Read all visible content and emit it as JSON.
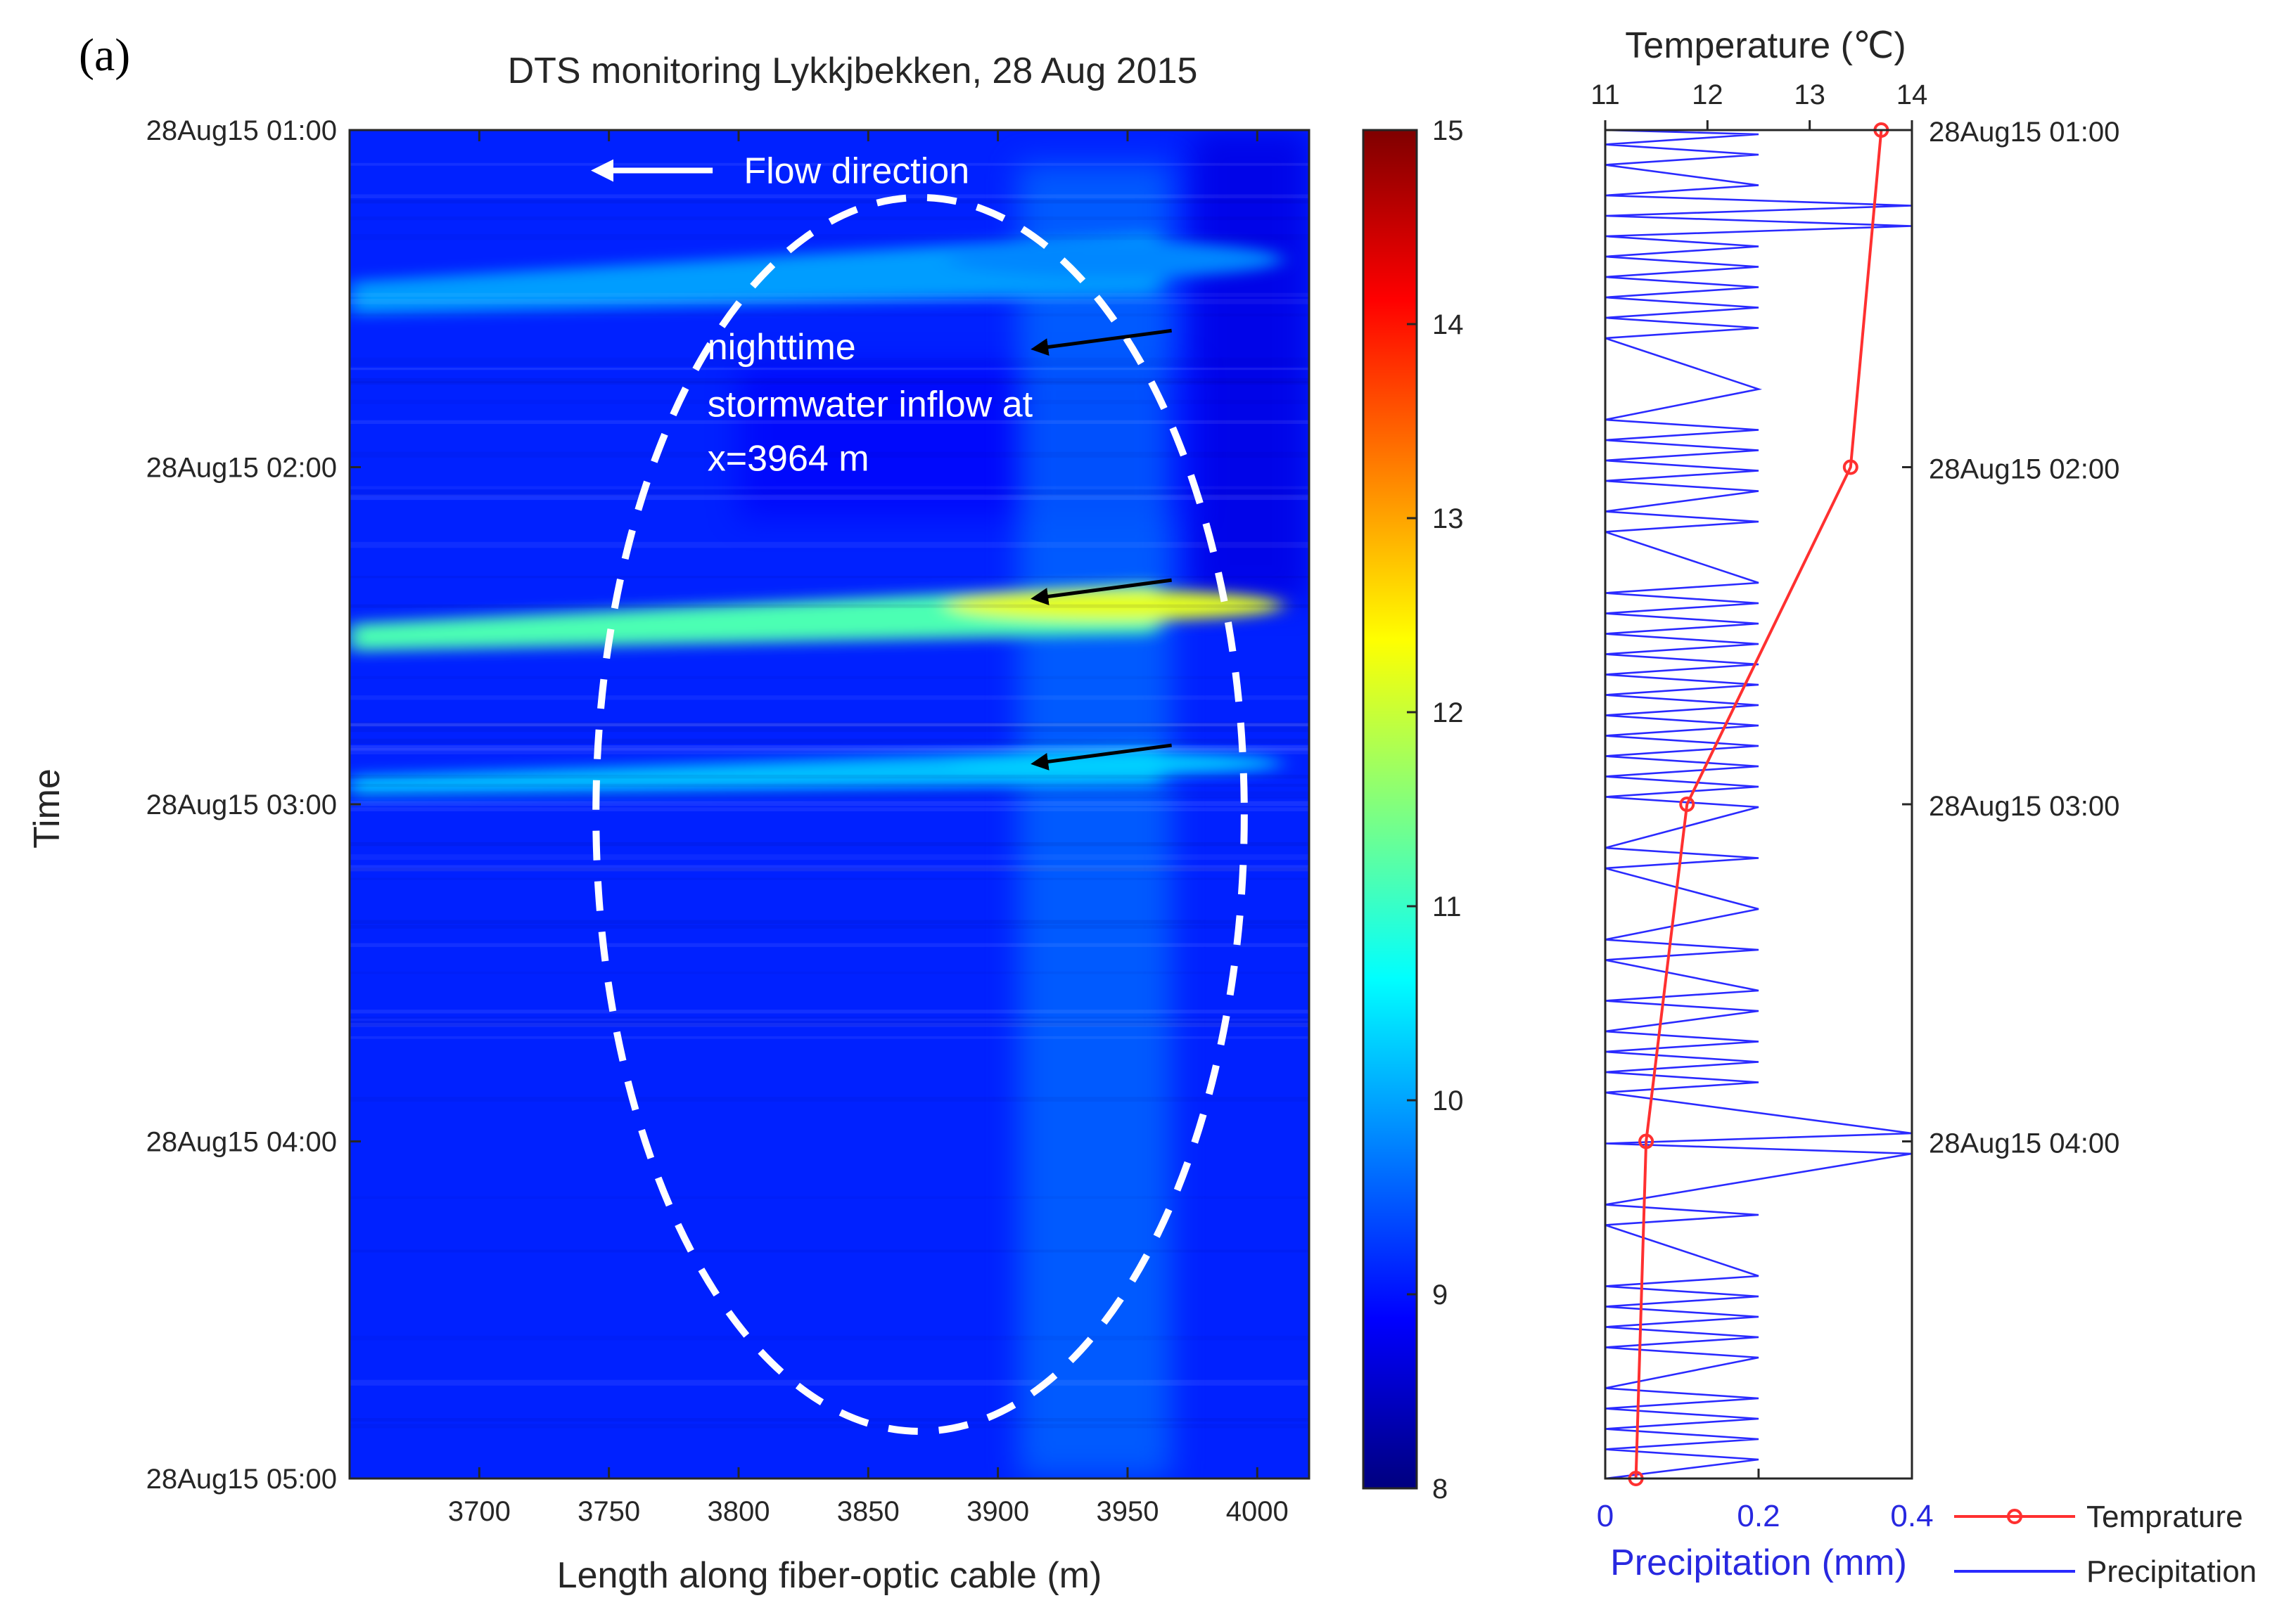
{
  "panel_label": "(a)",
  "colors": {
    "temperature": "#ff3030",
    "precipitation": "#2a2aff",
    "precip_axis_label": "#2828e0",
    "annotation": "#ffffff",
    "arrow_inflow": "#000000"
  },
  "chart_data": [
    {
      "type": "heatmap",
      "title": "DTS monitoring Lykkjbekken, 28 Aug 2015",
      "xlabel": "Length along fiber-optic cable (m)",
      "ylabel": "Time",
      "xlim": [
        3650,
        4020
      ],
      "xticks": [
        3700,
        3750,
        3800,
        3850,
        3900,
        3950,
        4000
      ],
      "yticks": [
        "28Aug15 01:00",
        "28Aug15 02:00",
        "28Aug15 03:00",
        "28Aug15 04:00",
        "28Aug15 05:00"
      ],
      "ylim_hours": [
        1,
        5
      ],
      "colorbar": {
        "min": 8,
        "max": 15,
        "ticks": [
          8,
          9,
          10,
          11,
          12,
          13,
          14,
          15
        ]
      },
      "baseline_temperature": 9.1,
      "warm_bands": [
        {
          "time": 2.44,
          "peak_temp": 12.2,
          "width_h": 0.1
        },
        {
          "time": 2.9,
          "peak_temp": 10.3,
          "width_h": 0.07
        },
        {
          "time": 1.42,
          "peak_temp": 9.8,
          "width_h": 0.12
        }
      ],
      "annotations": {
        "flow_label": "Flow direction",
        "inflow_line1": "nighttime",
        "inflow_line2": "stormwater inflow at",
        "inflow_line3": "x=3964 m",
        "inflow_arrow_times": [
          1.62,
          2.36,
          2.85
        ],
        "ellipse_center": {
          "length_m": 3870,
          "time_h": 3.03
        },
        "ellipse_half_axes": {
          "length_m": 125,
          "time_h": 1.83
        }
      }
    },
    {
      "type": "line",
      "top_axis_label": "Temperature (℃)",
      "top_ticks": [
        11,
        12,
        13,
        14
      ],
      "temp_xlim": [
        11,
        14
      ],
      "bottom_axis_label": "Precipitation (mm)",
      "bottom_ticks": [
        "0",
        "0.2",
        "0.4"
      ],
      "precip_xlim": [
        0,
        0.4
      ],
      "right_ticks": [
        "28Aug15 01:00",
        "28Aug15 02:00",
        "28Aug15 03:00",
        "28Aug15 04:00"
      ],
      "series": [
        {
          "name": "Temprature",
          "time_h": [
            1,
            2,
            3,
            4,
            5
          ],
          "values": [
            13.7,
            13.4,
            11.8,
            11.4,
            11.3
          ]
        },
        {
          "name": "Precipitation",
          "base_value": 0.2,
          "spike_values": [
            0.4,
            0.4
          ],
          "spike_times_h": [
            1.26,
            3.98
          ]
        }
      ],
      "legend": [
        "Temprature",
        "Precipitation"
      ]
    }
  ]
}
